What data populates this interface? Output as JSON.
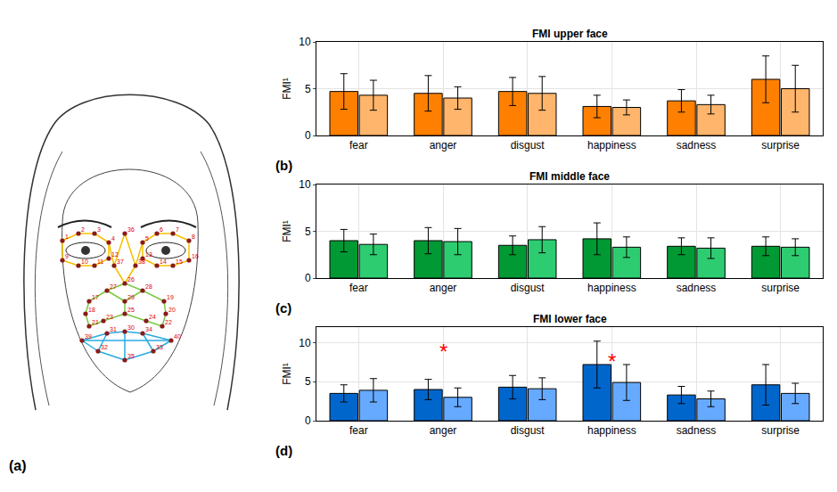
{
  "diagram": {
    "label": "(a)",
    "landmarks": [
      "1",
      "2",
      "3",
      "4",
      "5",
      "6",
      "7",
      "8",
      "9",
      "10",
      "11",
      "12",
      "13",
      "14",
      "15",
      "16",
      "17",
      "18",
      "19",
      "20",
      "21",
      "22",
      "23",
      "24",
      "25",
      "26",
      "27",
      "28",
      "29",
      "30",
      "31",
      "32",
      "33",
      "34",
      "35",
      "36",
      "37",
      "38",
      "39",
      "40"
    ]
  },
  "chart_data": [
    {
      "type": "bar",
      "title": "FMI upper face",
      "panel_label": "(b)",
      "ylabel": "FMI¹",
      "categories": [
        "fear",
        "anger",
        "disgust",
        "happiness",
        "sadness",
        "surprise"
      ],
      "series": [
        {
          "color": "#ff8000",
          "values": [
            4.7,
            4.5,
            4.7,
            3.1,
            3.7,
            6.0
          ],
          "error": [
            1.9,
            1.9,
            1.5,
            1.2,
            1.2,
            2.5
          ]
        },
        {
          "color": "#ffb56b",
          "values": [
            4.3,
            4.0,
            4.5,
            3.0,
            3.3,
            5.0
          ],
          "error": [
            1.6,
            1.2,
            1.8,
            0.8,
            1.0,
            2.5
          ]
        }
      ],
      "ylim": [
        0,
        10
      ],
      "yticks": [
        0,
        5,
        10
      ],
      "grid": true
    },
    {
      "type": "bar",
      "title": "FMI middle face",
      "panel_label": "(c)",
      "ylabel": "FMI¹",
      "categories": [
        "fear",
        "anger",
        "disgust",
        "happiness",
        "sadness",
        "surprise"
      ],
      "series": [
        {
          "color": "#009933",
          "values": [
            4.0,
            4.0,
            3.5,
            4.2,
            3.4,
            3.4
          ],
          "error": [
            1.2,
            1.4,
            1.0,
            1.7,
            0.9,
            1.0
          ]
        },
        {
          "color": "#2ecc71",
          "values": [
            3.6,
            3.9,
            4.1,
            3.3,
            3.2,
            3.3
          ],
          "error": [
            1.1,
            1.4,
            1.4,
            1.1,
            1.1,
            0.9
          ]
        }
      ],
      "ylim": [
        0,
        10
      ],
      "yticks": [
        0,
        5,
        10
      ],
      "grid": true
    },
    {
      "type": "bar",
      "title": "FMI lower face",
      "panel_label": "(d)",
      "ylabel": "FMI¹",
      "categories": [
        "fear",
        "anger",
        "disgust",
        "happiness",
        "sadness",
        "surprise"
      ],
      "series": [
        {
          "color": "#0066cc",
          "values": [
            3.5,
            4.0,
            4.3,
            7.2,
            3.3,
            4.6
          ],
          "error": [
            1.1,
            1.3,
            1.5,
            3.0,
            1.1,
            2.6
          ]
        },
        {
          "color": "#66aaff",
          "values": [
            3.9,
            3.0,
            4.1,
            4.9,
            2.8,
            3.5
          ],
          "error": [
            1.5,
            1.2,
            1.4,
            2.3,
            1.0,
            1.3
          ]
        }
      ],
      "annotations": [
        {
          "category": "anger",
          "text": "*",
          "y": 8.9,
          "color": "#ff0000"
        },
        {
          "category": "happiness",
          "text": "*",
          "y": 7.6,
          "color": "#ff0000"
        }
      ],
      "ylim": [
        0,
        12
      ],
      "yticks": [
        0,
        5,
        10
      ],
      "grid": true
    }
  ]
}
